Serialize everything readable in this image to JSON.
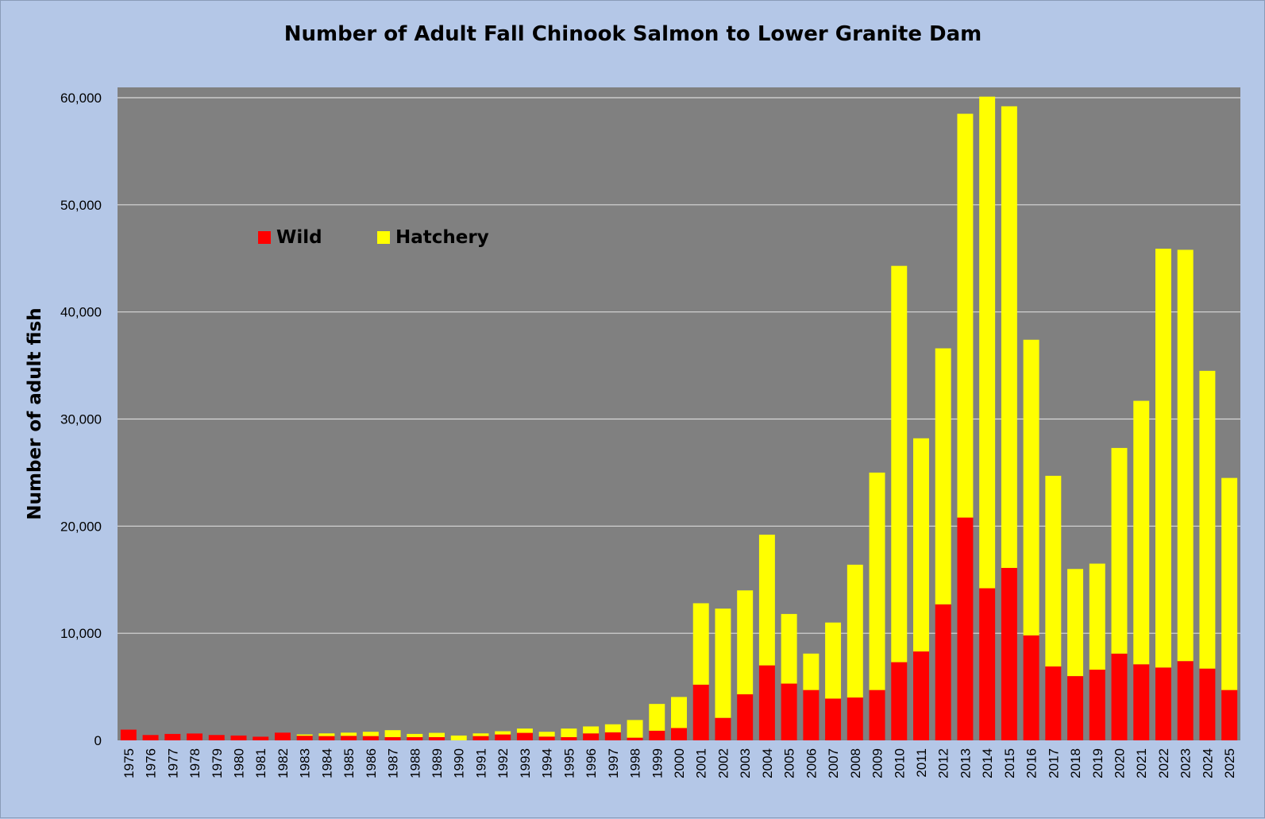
{
  "chart_data": {
    "type": "bar",
    "stacked": true,
    "title": "Number of Adult Fall Chinook Salmon to Lower Granite Dam",
    "ylabel": "Number of adult fish",
    "xlabel": "",
    "ylim": [
      0,
      60000
    ],
    "yticks": [
      0,
      10000,
      20000,
      30000,
      40000,
      50000,
      60000
    ],
    "ytick_labels": [
      "0",
      "10,000",
      "20,000",
      "30,000",
      "40,000",
      "50,000",
      "60,000"
    ],
    "grid": true,
    "legend_position": "top-left",
    "plot_background": "#808080",
    "page_background": "#b4c7e7",
    "categories": [
      "1975",
      "1976",
      "1977",
      "1978",
      "1979",
      "1980",
      "1981",
      "1982",
      "1983",
      "1984",
      "1985",
      "1986",
      "1987",
      "1988",
      "1989",
      "1990",
      "1991",
      "1992",
      "1993",
      "1994",
      "1995",
      "1996",
      "1997",
      "1998",
      "1999",
      "2000",
      "2001",
      "2002",
      "2003",
      "2004",
      "2005",
      "2006",
      "2007",
      "2008",
      "2009",
      "2010",
      "2011",
      "2012",
      "2013",
      "2014",
      "2015",
      "2016",
      "2017",
      "2018",
      "2019",
      "2020",
      "2021",
      "2022",
      "2023",
      "2024",
      "2025"
    ],
    "series": [
      {
        "name": "Wild",
        "color": "#ff0000",
        "values": [
          1000,
          500,
          600,
          640,
          500,
          450,
          340,
          720,
          430,
          400,
          420,
          400,
          300,
          300,
          300,
          0,
          400,
          550,
          700,
          350,
          300,
          650,
          750,
          250,
          900,
          1150,
          5200,
          2100,
          4300,
          7000,
          5300,
          4700,
          3900,
          4000,
          4700,
          7300,
          8300,
          12700,
          20800,
          14200,
          16100,
          9800,
          6900,
          6000,
          6600,
          8100,
          7100,
          6800,
          7400,
          6700,
          4700
        ]
      },
      {
        "name": "Hatchery",
        "color": "#ffff00",
        "values": [
          0,
          0,
          0,
          0,
          0,
          0,
          0,
          0,
          120,
          250,
          300,
          400,
          650,
          300,
          400,
          450,
          250,
          300,
          400,
          450,
          800,
          650,
          750,
          1650,
          2500,
          2900,
          7600,
          10200,
          9700,
          12200,
          6500,
          3400,
          7100,
          12400,
          20300,
          37000,
          19900,
          23900,
          37700,
          45900,
          43100,
          27600,
          17800,
          10000,
          9900,
          19200,
          24600,
          39100,
          38400,
          27800,
          19800
        ]
      }
    ]
  }
}
